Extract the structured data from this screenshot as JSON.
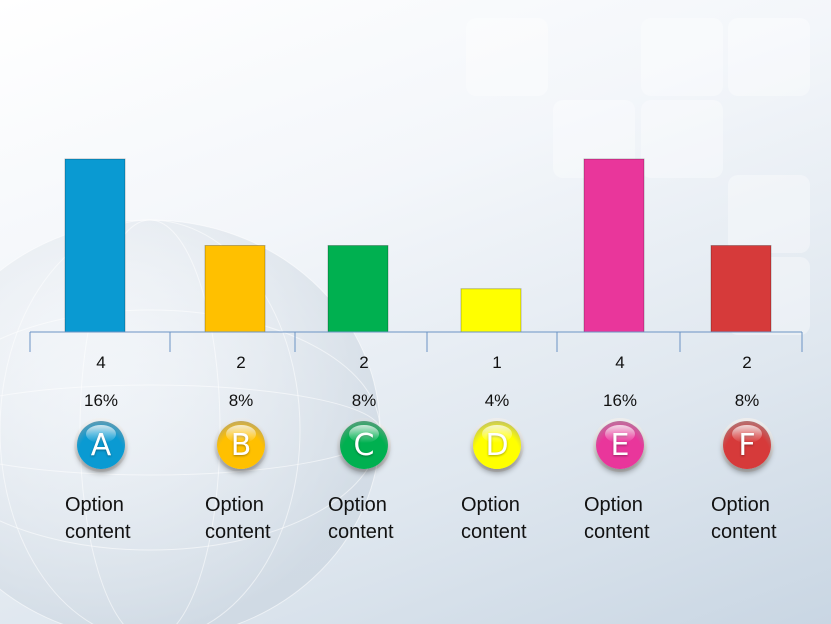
{
  "colors": {
    "A": "#0a9ad2",
    "B": "#ffc000",
    "C": "#00b050",
    "D": "#ffff00",
    "E": "#e9369b",
    "F": "#d63a3a",
    "axis": "#6b93c4"
  },
  "chart_data": {
    "type": "bar",
    "categories": [
      "A",
      "B",
      "C",
      "D",
      "E",
      "F"
    ],
    "values": [
      4,
      2,
      2,
      1,
      4,
      2
    ],
    "percent_labels": [
      "16%",
      "8%",
      "8%",
      "4%",
      "16%",
      "8%"
    ],
    "option_labels": [
      [
        "Option",
        "content"
      ],
      [
        "Option",
        "content"
      ],
      [
        "Option",
        "content"
      ],
      [
        "Option",
        "content"
      ],
      [
        "Option",
        "content"
      ],
      [
        "Option",
        "content"
      ]
    ],
    "ylim": [
      0,
      4
    ]
  }
}
